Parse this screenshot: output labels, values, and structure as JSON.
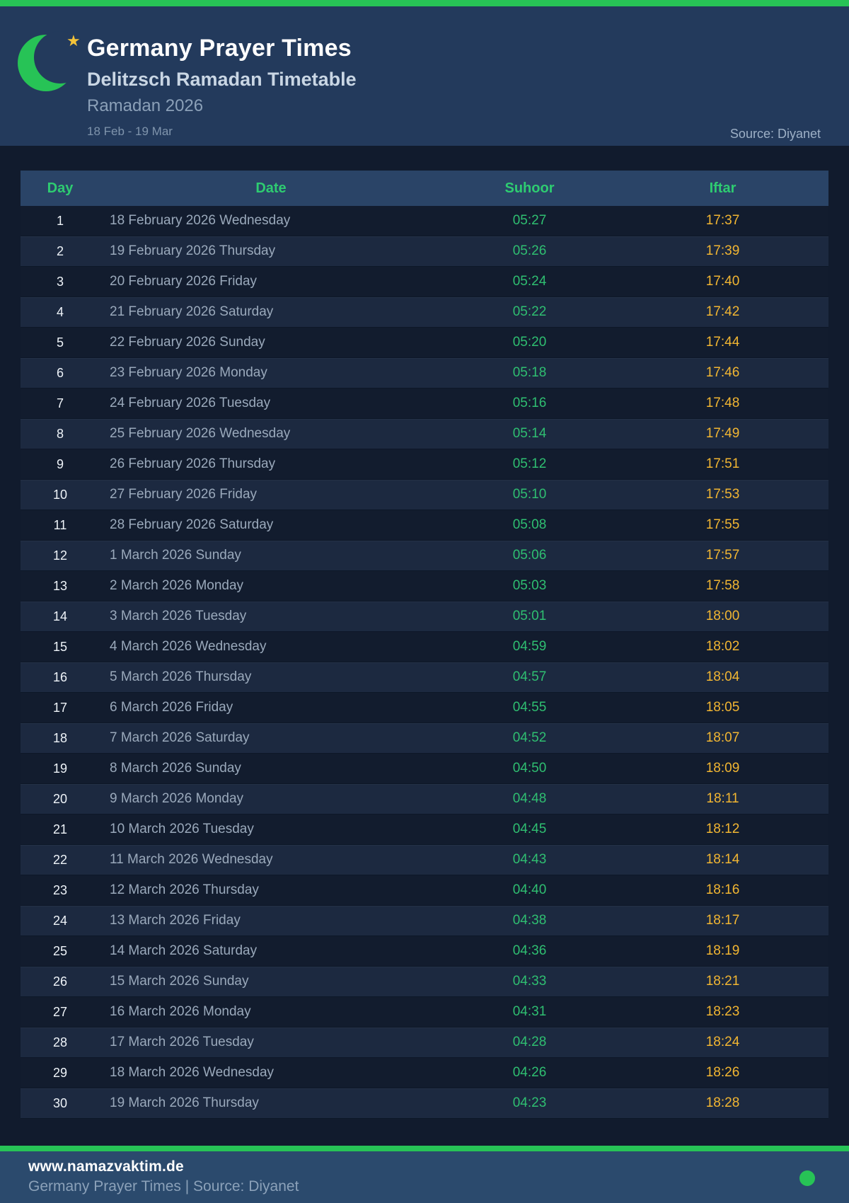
{
  "colors": {
    "accent_green": "#27c356",
    "table_header_green": "#2ecc71",
    "suhoor_green": "#2fbf71",
    "iftar_amber": "#f2b632",
    "header_bg": "#233a5c",
    "table_header_bg": "#2a4467",
    "row_dark_bg": "#121c2e",
    "row_light_bg": "#1c2940",
    "footer_bg": "#2b4a6d"
  },
  "header": {
    "title": "Germany Prayer Times",
    "subtitle": "Delitzsch Ramadan Timetable",
    "season": "Ramadan 2026",
    "date_range": "18 Feb - 19 Mar",
    "source": "Source: Diyanet",
    "star_glyph": "★"
  },
  "table": {
    "columns": [
      "Day",
      "Date",
      "Suhoor",
      "Iftar"
    ],
    "rows": [
      {
        "day": "1",
        "date": "18 February 2026 Wednesday",
        "suhoor": "05:27",
        "iftar": "17:37"
      },
      {
        "day": "2",
        "date": "19 February 2026 Thursday",
        "suhoor": "05:26",
        "iftar": "17:39"
      },
      {
        "day": "3",
        "date": "20 February 2026 Friday",
        "suhoor": "05:24",
        "iftar": "17:40"
      },
      {
        "day": "4",
        "date": "21 February 2026 Saturday",
        "suhoor": "05:22",
        "iftar": "17:42"
      },
      {
        "day": "5",
        "date": "22 February 2026 Sunday",
        "suhoor": "05:20",
        "iftar": "17:44"
      },
      {
        "day": "6",
        "date": "23 February 2026 Monday",
        "suhoor": "05:18",
        "iftar": "17:46"
      },
      {
        "day": "7",
        "date": "24 February 2026 Tuesday",
        "suhoor": "05:16",
        "iftar": "17:48"
      },
      {
        "day": "8",
        "date": "25 February 2026 Wednesday",
        "suhoor": "05:14",
        "iftar": "17:49"
      },
      {
        "day": "9",
        "date": "26 February 2026 Thursday",
        "suhoor": "05:12",
        "iftar": "17:51"
      },
      {
        "day": "10",
        "date": "27 February 2026 Friday",
        "suhoor": "05:10",
        "iftar": "17:53"
      },
      {
        "day": "11",
        "date": "28 February 2026 Saturday",
        "suhoor": "05:08",
        "iftar": "17:55"
      },
      {
        "day": "12",
        "date": "1 March 2026 Sunday",
        "suhoor": "05:06",
        "iftar": "17:57"
      },
      {
        "day": "13",
        "date": "2 March 2026 Monday",
        "suhoor": "05:03",
        "iftar": "17:58"
      },
      {
        "day": "14",
        "date": "3 March 2026 Tuesday",
        "suhoor": "05:01",
        "iftar": "18:00"
      },
      {
        "day": "15",
        "date": "4 March 2026 Wednesday",
        "suhoor": "04:59",
        "iftar": "18:02"
      },
      {
        "day": "16",
        "date": "5 March 2026 Thursday",
        "suhoor": "04:57",
        "iftar": "18:04"
      },
      {
        "day": "17",
        "date": "6 March 2026 Friday",
        "suhoor": "04:55",
        "iftar": "18:05"
      },
      {
        "day": "18",
        "date": "7 March 2026 Saturday",
        "suhoor": "04:52",
        "iftar": "18:07"
      },
      {
        "day": "19",
        "date": "8 March 2026 Sunday",
        "suhoor": "04:50",
        "iftar": "18:09"
      },
      {
        "day": "20",
        "date": "9 March 2026 Monday",
        "suhoor": "04:48",
        "iftar": "18:11"
      },
      {
        "day": "21",
        "date": "10 March 2026 Tuesday",
        "suhoor": "04:45",
        "iftar": "18:12"
      },
      {
        "day": "22",
        "date": "11 March 2026 Wednesday",
        "suhoor": "04:43",
        "iftar": "18:14"
      },
      {
        "day": "23",
        "date": "12 March 2026 Thursday",
        "suhoor": "04:40",
        "iftar": "18:16"
      },
      {
        "day": "24",
        "date": "13 March 2026 Friday",
        "suhoor": "04:38",
        "iftar": "18:17"
      },
      {
        "day": "25",
        "date": "14 March 2026 Saturday",
        "suhoor": "04:36",
        "iftar": "18:19"
      },
      {
        "day": "26",
        "date": "15 March 2026 Sunday",
        "suhoor": "04:33",
        "iftar": "18:21"
      },
      {
        "day": "27",
        "date": "16 March 2026 Monday",
        "suhoor": "04:31",
        "iftar": "18:23"
      },
      {
        "day": "28",
        "date": "17 March 2026 Tuesday",
        "suhoor": "04:28",
        "iftar": "18:24"
      },
      {
        "day": "29",
        "date": "18 March 2026 Wednesday",
        "suhoor": "04:26",
        "iftar": "18:26"
      },
      {
        "day": "30",
        "date": "19 March 2026 Thursday",
        "suhoor": "04:23",
        "iftar": "18:28"
      }
    ]
  },
  "footer": {
    "website": "www.namazvaktim.de",
    "tagline": "Germany Prayer Times | Source: Diyanet"
  }
}
